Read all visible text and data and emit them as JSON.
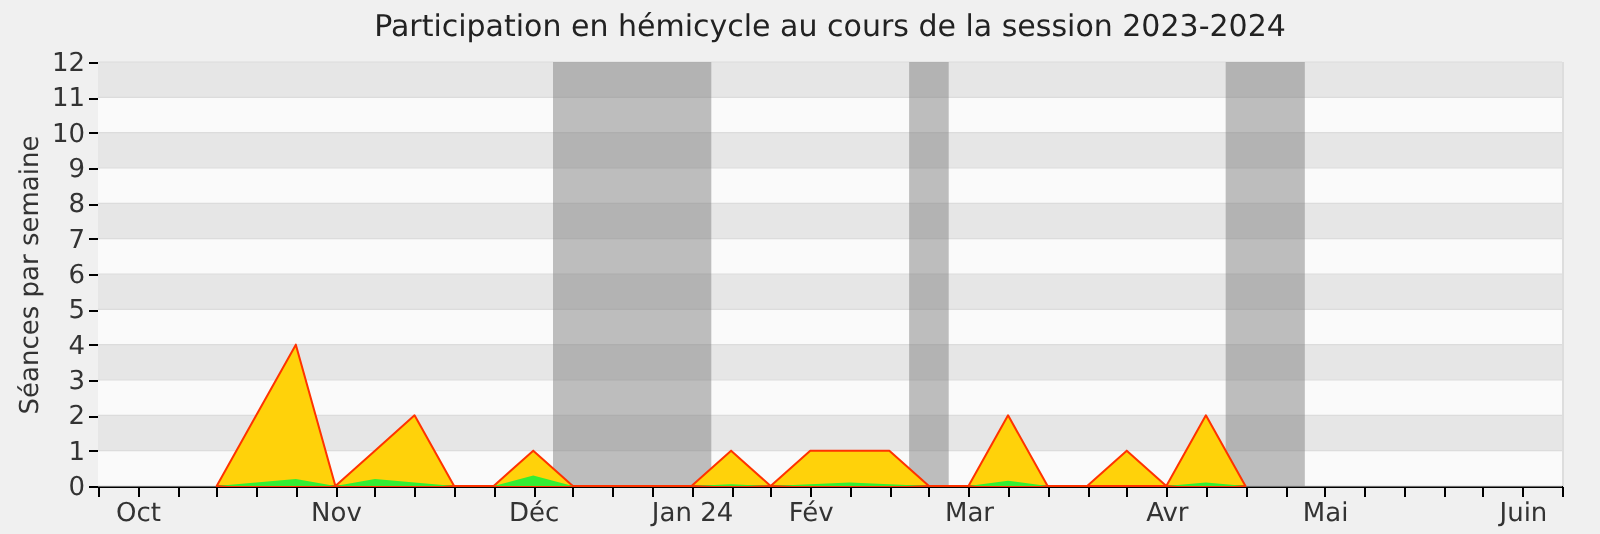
{
  "chart_data": {
    "type": "area",
    "title": "Participation en hémicycle au cours de la session 2023-2024",
    "ylabel": "Séances par semaine",
    "x": [
      "2023-10-20",
      "2023-10-27",
      "2023-11-03",
      "2023-11-10",
      "2023-11-17",
      "2023-11-24",
      "2023-12-01",
      "2023-12-08",
      "2023-12-15",
      "2023-12-22",
      "2023-12-29",
      "2024-01-05",
      "2024-01-12",
      "2024-01-19",
      "2024-01-26",
      "2024-02-02",
      "2024-02-09",
      "2024-02-16",
      "2024-02-23",
      "2024-03-01",
      "2024-03-08",
      "2024-03-15",
      "2024-03-22",
      "2024-03-29",
      "2024-04-05",
      "2024-04-12",
      "2024-04-19"
    ],
    "series": [
      {
        "color": "#ffd20a",
        "values": [
          0,
          2,
          4,
          0,
          1,
          2,
          0,
          0,
          1,
          0,
          0,
          0,
          0,
          1,
          0,
          1,
          1,
          1,
          0,
          0,
          2,
          0,
          0,
          1,
          0,
          2,
          0
        ]
      },
      {
        "color": "#33ee33",
        "values": [
          0,
          0.1,
          0.2,
          0,
          0.2,
          0.1,
          0,
          0,
          0.3,
          0,
          0,
          0,
          0,
          0.05,
          0,
          0.05,
          0.1,
          0.05,
          0,
          0,
          0.15,
          0,
          0,
          0,
          0,
          0.1,
          0
        ]
      }
    ],
    "xlim": [
      "2023-09-29",
      "2024-06-14"
    ],
    "xticks": [
      {
        "value": "2023-09-29",
        "label": null
      },
      {
        "value": "2023-10-06",
        "label": "Oct"
      },
      {
        "value": "2023-10-13",
        "label": null
      },
      {
        "value": "2023-10-20",
        "label": null
      },
      {
        "value": "2023-10-27",
        "label": null
      },
      {
        "value": "2023-11-03",
        "label": null
      },
      {
        "value": "2023-11-10",
        "label": "Nov"
      },
      {
        "value": "2023-11-17",
        "label": null
      },
      {
        "value": "2023-11-24",
        "label": null
      },
      {
        "value": "2023-12-01",
        "label": null
      },
      {
        "value": "2023-12-08",
        "label": null
      },
      {
        "value": "2023-12-15",
        "label": "Déc"
      },
      {
        "value": "2023-12-22",
        "label": null
      },
      {
        "value": "2023-12-29",
        "label": null
      },
      {
        "value": "2024-01-05",
        "label": null
      },
      {
        "value": "2024-01-12",
        "label": "Jan 24"
      },
      {
        "value": "2024-01-19",
        "label": null
      },
      {
        "value": "2024-01-26",
        "label": null
      },
      {
        "value": "2024-02-02",
        "label": "Fév"
      },
      {
        "value": "2024-02-09",
        "label": null
      },
      {
        "value": "2024-02-16",
        "label": null
      },
      {
        "value": "2024-02-23",
        "label": null
      },
      {
        "value": "2024-03-01",
        "label": "Mar"
      },
      {
        "value": "2024-03-08",
        "label": null
      },
      {
        "value": "2024-03-15",
        "label": null
      },
      {
        "value": "2024-03-22",
        "label": null
      },
      {
        "value": "2024-03-29",
        "label": null
      },
      {
        "value": "2024-04-05",
        "label": "Avr"
      },
      {
        "value": "2024-04-12",
        "label": null
      },
      {
        "value": "2024-04-19",
        "label": null
      },
      {
        "value": "2024-04-26",
        "label": null
      },
      {
        "value": "2024-05-03",
        "label": "Mai"
      },
      {
        "value": "2024-05-10",
        "label": null
      },
      {
        "value": "2024-05-17",
        "label": null
      },
      {
        "value": "2024-05-24",
        "label": null
      },
      {
        "value": "2024-05-31",
        "label": null
      },
      {
        "value": "2024-06-07",
        "label": "Juin"
      },
      {
        "value": "2024-06-14",
        "label": null
      }
    ],
    "ylim": [
      0,
      12
    ],
    "yticks": [
      0,
      1,
      2,
      3,
      4,
      5,
      6,
      7,
      8,
      9,
      10,
      11,
      12
    ],
    "bands": [
      {
        "axis": "x",
        "from": "2023-12-18T12:00",
        "to": "2024-01-15T12:00",
        "color": "#808080"
      },
      {
        "axis": "x",
        "from": "2024-02-19T12:00",
        "to": "2024-02-26T12:00",
        "color": "#808080"
      },
      {
        "axis": "x",
        "from": "2024-04-15T12:00",
        "to": "2024-04-29T12:00",
        "color": "#808080"
      }
    ],
    "grid": "y"
  }
}
